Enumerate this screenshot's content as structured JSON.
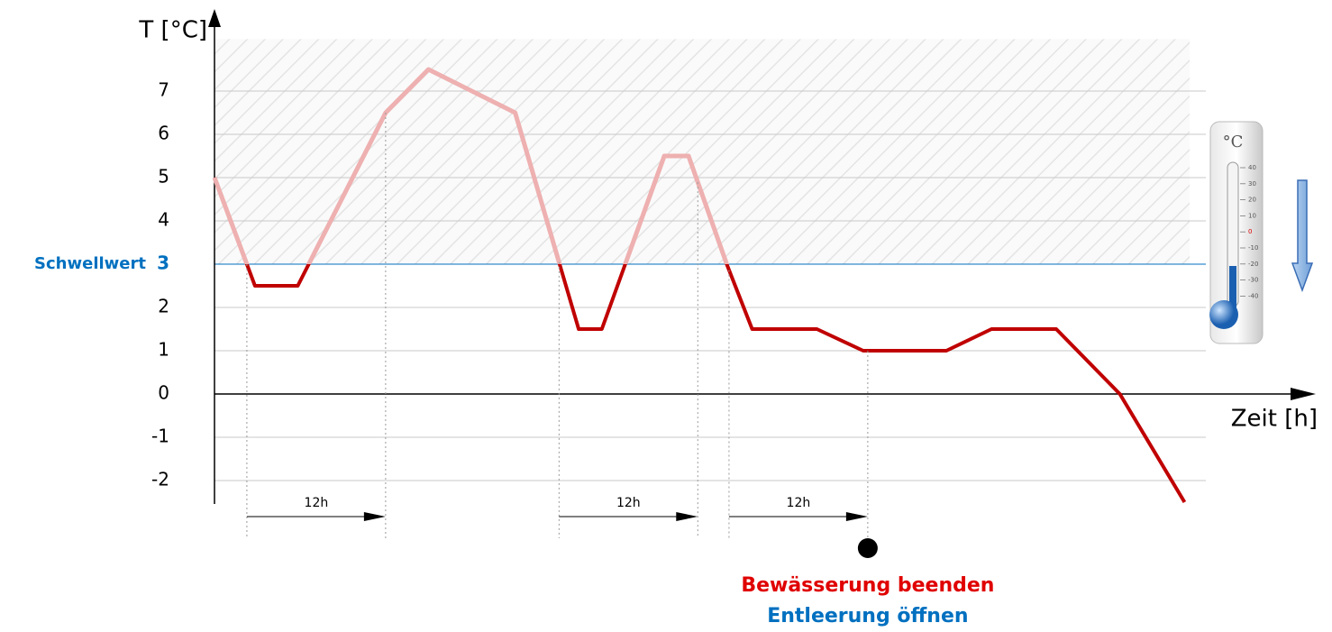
{
  "chart_data": {
    "type": "line",
    "y_label": "T [°C]",
    "x_label": "Zeit [h]",
    "x": [
      0,
      3.5,
      7.2,
      14.8,
      18.5,
      26,
      31.5,
      33.5,
      38.9,
      41,
      44.3,
      46.5,
      52.1,
      56.1,
      63.3,
      67.2,
      72.8,
      78.3,
      83.9
    ],
    "series": [
      {
        "color": "#c00000",
        "above_color": "#eeb0b0",
        "values": [
          5,
          2.5,
          2.5,
          6.5,
          7.5,
          6.5,
          1.5,
          1.5,
          5.5,
          5.5,
          3,
          1.5,
          1.5,
          1,
          1,
          1.5,
          1.5,
          0,
          -2.5
        ]
      }
    ],
    "xlim": [
      0,
      94
    ],
    "ylim": [
      -2.5,
      8.2
    ],
    "yticks": [
      -2,
      -1,
      0,
      1,
      2,
      {
        "value": 3,
        "label": "3"
      },
      4,
      5,
      6,
      7
    ],
    "grid": true,
    "threshold": {
      "value": 3,
      "label": "Schwellwert",
      "color": "#0070c0"
    },
    "intervals": [
      {
        "start": 2.8,
        "end": 14.8,
        "label": "12h"
      },
      {
        "start": 29.8,
        "end": 41.8,
        "label": "12h"
      },
      {
        "start": 44.5,
        "end": 56.5,
        "label": "12h"
      }
    ],
    "event": {
      "x": 56.5,
      "lines": [
        {
          "text": "Bewässerung beenden",
          "color": "#e00000"
        },
        {
          "text": "Entleerung öffnen",
          "color": "#0070c0"
        }
      ]
    },
    "thermometer": {
      "unit": "°C",
      "scale": [
        "40",
        "30",
        "20",
        "10",
        "0",
        "-10",
        "-20",
        "-30",
        "-40"
      ]
    }
  }
}
